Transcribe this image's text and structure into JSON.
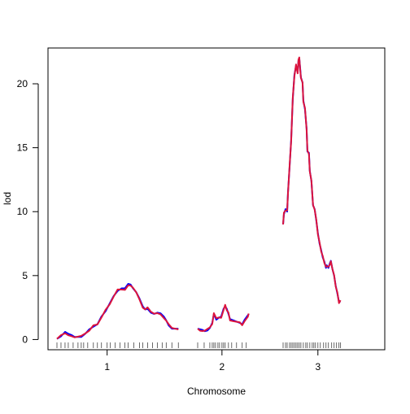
{
  "chart_data": {
    "type": "line",
    "xlabel": "Chromosome",
    "ylabel": "lod",
    "ylim": [
      -0.8,
      22.8
    ],
    "yticks": [
      0,
      5,
      10,
      15,
      20
    ],
    "grid": false,
    "legend": "none",
    "colors": {
      "series_a": "#0000ff",
      "series_b": "#dc143c",
      "axis": "#000000",
      "rug": "#444444"
    },
    "chromosomes": [
      {
        "label": "1",
        "label_pos": 62,
        "range_cM": [
          0,
          125
        ],
        "lod": [
          [
            0,
            0.05
          ],
          [
            5,
            0.25
          ],
          [
            10,
            0.6
          ],
          [
            14,
            0.45
          ],
          [
            18,
            0.35
          ],
          [
            22,
            0.2
          ],
          [
            26,
            0.2
          ],
          [
            30,
            0.2
          ],
          [
            35,
            0.45
          ],
          [
            40,
            0.8
          ],
          [
            45,
            1.0
          ],
          [
            50,
            1.2
          ],
          [
            55,
            1.8
          ],
          [
            60,
            2.2
          ],
          [
            65,
            2.8
          ],
          [
            70,
            3.4
          ],
          [
            75,
            3.8
          ],
          [
            80,
            4.0
          ],
          [
            84,
            4.0
          ],
          [
            88,
            4.35
          ],
          [
            91,
            4.3
          ],
          [
            94,
            4.0
          ],
          [
            98,
            3.7
          ],
          [
            102,
            3.2
          ],
          [
            106,
            2.6
          ],
          [
            109,
            2.35
          ],
          [
            112,
            2.4
          ],
          [
            116,
            2.1
          ],
          [
            120,
            2.0
          ],
          [
            124,
            2.1
          ],
          [
            128,
            2.05
          ],
          [
            132,
            1.8
          ],
          [
            135,
            1.5
          ],
          [
            138,
            1.1
          ],
          [
            142,
            0.85
          ],
          [
            150,
            0.85
          ]
        ],
        "markers": [
          0,
          5,
          10,
          14,
          20,
          26,
          30,
          33,
          38,
          45,
          50,
          55,
          62,
          66,
          72,
          78,
          84,
          88,
          95,
          102,
          106,
          112,
          118,
          124,
          130,
          135,
          142,
          150
        ]
      },
      {
        "label": "2",
        "label_pos": 30,
        "range_cM": [
          0,
          62
        ],
        "lod": [
          [
            0,
            0.85
          ],
          [
            3,
            0.8
          ],
          [
            6,
            0.75
          ],
          [
            9,
            0.65
          ],
          [
            12,
            0.7
          ],
          [
            15,
            0.9
          ],
          [
            18,
            1.3
          ],
          [
            20,
            2.0
          ],
          [
            23,
            1.55
          ],
          [
            26,
            1.7
          ],
          [
            29,
            1.8
          ],
          [
            32,
            2.4
          ],
          [
            34,
            2.6
          ],
          [
            36,
            2.4
          ],
          [
            38,
            2.0
          ],
          [
            40,
            1.6
          ],
          [
            44,
            1.5
          ],
          [
            48,
            1.4
          ],
          [
            52,
            1.3
          ],
          [
            55,
            1.2
          ],
          [
            58,
            1.55
          ],
          [
            62,
            1.9
          ],
          [
            63,
            2.0
          ]
        ],
        "markers": [
          0,
          8,
          15,
          18,
          20,
          22,
          25,
          27,
          30,
          32,
          34,
          38,
          42,
          48,
          55,
          60
        ]
      },
      {
        "label": "3",
        "label_pos": 43,
        "range_cM": [
          0,
          88
        ],
        "lod": [
          [
            0,
            9.0
          ],
          [
            1,
            9.8
          ],
          [
            3,
            10.2
          ],
          [
            5,
            10.0
          ],
          [
            6,
            11.5
          ],
          [
            8,
            13.5
          ],
          [
            10,
            15.6
          ],
          [
            12,
            18.8
          ],
          [
            14,
            20.7
          ],
          [
            16,
            21.4
          ],
          [
            18,
            20.9
          ],
          [
            19,
            21.8
          ],
          [
            20,
            22.0
          ],
          [
            21,
            21.3
          ],
          [
            22,
            20.5
          ],
          [
            24,
            20.1
          ],
          [
            25,
            18.7
          ],
          [
            27,
            18.0
          ],
          [
            29,
            16.5
          ],
          [
            30,
            14.7
          ],
          [
            32,
            14.6
          ],
          [
            33,
            13.2
          ],
          [
            35,
            12.4
          ],
          [
            37,
            10.5
          ],
          [
            39,
            10.2
          ],
          [
            41,
            9.3
          ],
          [
            43,
            8.3
          ],
          [
            45,
            7.5
          ],
          [
            47,
            7.0
          ],
          [
            49,
            6.4
          ],
          [
            51,
            6.1
          ],
          [
            53,
            5.6
          ],
          [
            54,
            5.8
          ],
          [
            56,
            5.6
          ],
          [
            58,
            6.0
          ],
          [
            59,
            6.15
          ],
          [
            61,
            5.5
          ],
          [
            63,
            5.0
          ],
          [
            65,
            4.2
          ],
          [
            67,
            3.6
          ],
          [
            69,
            2.95
          ],
          [
            71,
            2.95
          ]
        ],
        "markers": [
          0,
          3,
          5,
          8,
          10,
          12,
          14,
          16,
          18,
          20,
          22,
          25,
          28,
          30,
          33,
          36,
          38,
          40,
          43,
          46,
          50,
          53,
          56,
          60,
          63,
          66,
          69,
          71
        ]
      }
    ],
    "series": [
      {
        "color_key": "series_a"
      },
      {
        "color_key": "series_b"
      }
    ]
  }
}
